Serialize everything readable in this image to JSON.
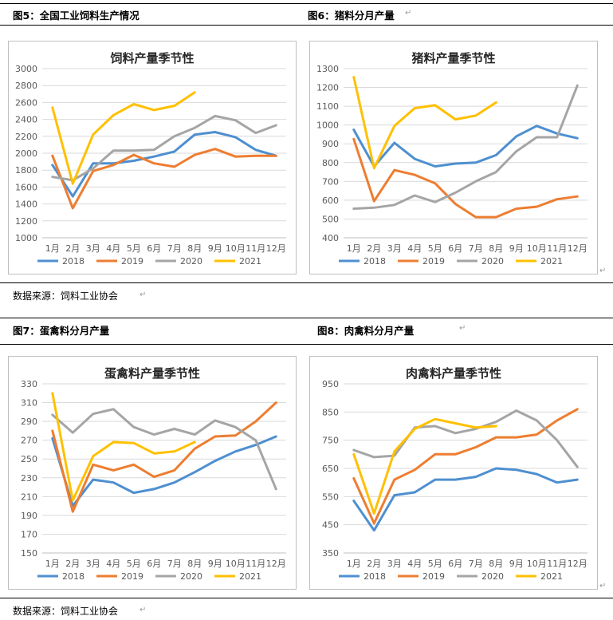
{
  "page": {
    "sections": [
      {
        "captions": [
          {
            "label": "图5：全国工业饲料生产情况"
          },
          {
            "label": "图6：猪料分月产量"
          }
        ],
        "source": "数据来源：饲料工业协会"
      },
      {
        "captions": [
          {
            "label": "图7：蛋禽料分月产量"
          },
          {
            "label": "图8：肉禽料分月产量"
          }
        ],
        "source": "数据来源：饲料工业协会"
      }
    ],
    "colors": {
      "2018": "#4e8fd0",
      "2019": "#ed7d31",
      "2020": "#a5a5a5",
      "2021": "#ffc000",
      "grid": "#d9d9d9",
      "axis_text": "#595959"
    }
  },
  "chart_data": [
    {
      "type": "line",
      "title": "饲料产量季节性",
      "categories": [
        "1月",
        "2月",
        "3月",
        "4月",
        "5月",
        "6月",
        "7月",
        "8月",
        "9月",
        "10月",
        "11月",
        "12月"
      ],
      "ylim": [
        1000,
        3000
      ],
      "yticks": [
        1000,
        1200,
        1400,
        1600,
        1800,
        2000,
        2200,
        2400,
        2600,
        2800,
        3000
      ],
      "grid": true,
      "legend": "bottom",
      "series": [
        {
          "name": "2018",
          "values": [
            1860,
            1490,
            1880,
            1880,
            1910,
            1960,
            2020,
            2220,
            2250,
            2190,
            2040,
            1970
          ]
        },
        {
          "name": "2019",
          "values": [
            1970,
            1350,
            1790,
            1860,
            1980,
            1880,
            1840,
            1980,
            2050,
            1960,
            1970,
            1970
          ]
        },
        {
          "name": "2020",
          "values": [
            1720,
            1680,
            1820,
            2030,
            2030,
            2040,
            2200,
            2300,
            2440,
            2390,
            2240,
            2330
          ]
        },
        {
          "name": "2021",
          "values": [
            2540,
            1640,
            2220,
            2450,
            2580,
            2510,
            2560,
            2720,
            null,
            null,
            null,
            null
          ]
        }
      ]
    },
    {
      "type": "line",
      "title": "猪料产量季节性",
      "categories": [
        "1月",
        "2月",
        "3月",
        "4月",
        "5月",
        "6月",
        "7月",
        "8月",
        "9月",
        "10月",
        "11月",
        "12月"
      ],
      "ylim": [
        400,
        1300
      ],
      "yticks": [
        400,
        500,
        600,
        700,
        800,
        900,
        1000,
        1100,
        1200,
        1300
      ],
      "grid": true,
      "legend": "bottom",
      "series": [
        {
          "name": "2018",
          "values": [
            975,
            780,
            905,
            820,
            780,
            795,
            800,
            840,
            940,
            995,
            955,
            930
          ]
        },
        {
          "name": "2019",
          "values": [
            925,
            595,
            760,
            735,
            690,
            580,
            510,
            510,
            555,
            565,
            605,
            620
          ]
        },
        {
          "name": "2020",
          "values": [
            555,
            560,
            575,
            625,
            590,
            640,
            700,
            750,
            860,
            935,
            935,
            1210
          ]
        },
        {
          "name": "2021",
          "values": [
            1255,
            770,
            995,
            1090,
            1105,
            1030,
            1050,
            1120,
            null,
            null,
            null,
            null
          ]
        }
      ]
    },
    {
      "type": "line",
      "title": "蛋禽料产量季节性",
      "categories": [
        "1月",
        "2月",
        "3月",
        "4月",
        "5月",
        "6月",
        "7月",
        "8月",
        "9月",
        "10月",
        "11月",
        "12月"
      ],
      "ylim": [
        150,
        330
      ],
      "yticks": [
        150,
        170,
        190,
        210,
        230,
        250,
        270,
        290,
        310,
        330
      ],
      "grid": true,
      "legend": "bottom",
      "series": [
        {
          "name": "2018",
          "values": [
            272,
            200,
            228,
            225,
            214,
            218,
            225,
            236,
            248,
            258,
            265,
            274
          ]
        },
        {
          "name": "2019",
          "values": [
            280,
            194,
            244,
            238,
            244,
            231,
            238,
            261,
            274,
            275,
            290,
            310
          ]
        },
        {
          "name": "2020",
          "values": [
            297,
            278,
            298,
            303,
            284,
            276,
            282,
            276,
            291,
            284,
            270,
            218
          ]
        },
        {
          "name": "2021",
          "values": [
            320,
            206,
            253,
            268,
            267,
            256,
            258,
            268,
            null,
            null,
            null,
            null
          ]
        }
      ]
    },
    {
      "type": "line",
      "title": "肉禽料产量季节性",
      "categories": [
        "1月",
        "2月",
        "3月",
        "4月",
        "5月",
        "6月",
        "7月",
        "8月",
        "9月",
        "10月",
        "11月",
        "12月"
      ],
      "ylim": [
        350,
        950
      ],
      "yticks": [
        350,
        450,
        550,
        650,
        750,
        850,
        950
      ],
      "grid": true,
      "legend": "bottom",
      "series": [
        {
          "name": "2018",
          "values": [
            535,
            430,
            555,
            565,
            610,
            610,
            620,
            650,
            645,
            630,
            600,
            610
          ]
        },
        {
          "name": "2019",
          "values": [
            615,
            455,
            610,
            645,
            700,
            700,
            725,
            760,
            760,
            770,
            820,
            860
          ]
        },
        {
          "name": "2020",
          "values": [
            715,
            690,
            695,
            795,
            800,
            775,
            790,
            815,
            855,
            820,
            750,
            655
          ]
        },
        {
          "name": "2021",
          "values": [
            700,
            490,
            710,
            790,
            825,
            810,
            795,
            800,
            null,
            null,
            null,
            null
          ]
        }
      ]
    }
  ]
}
